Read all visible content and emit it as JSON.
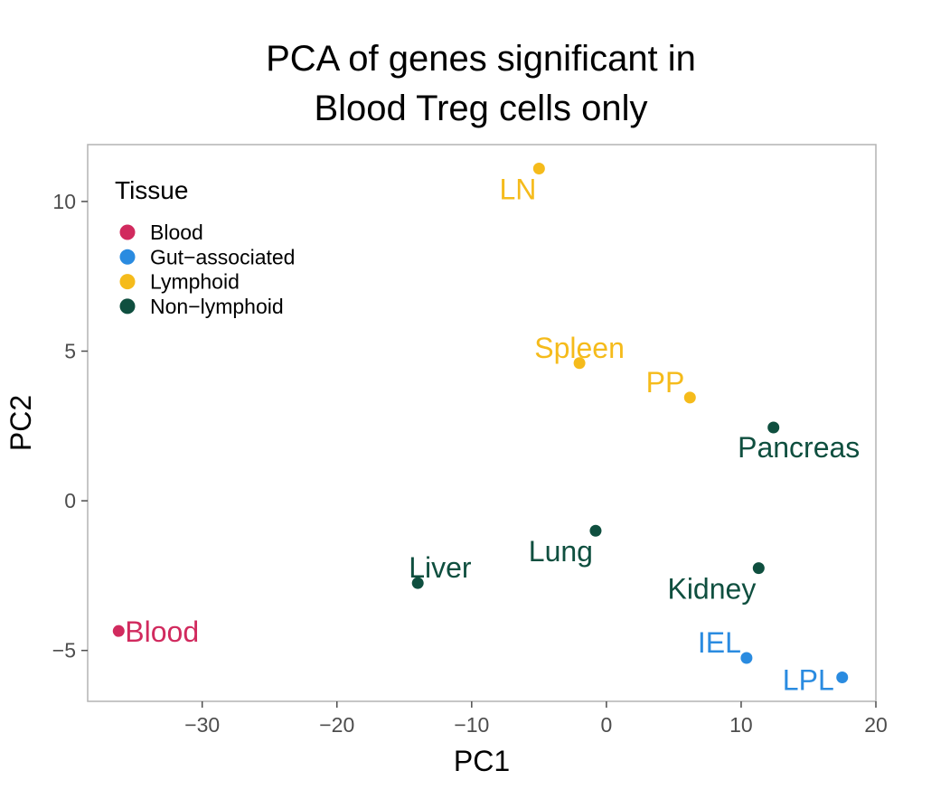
{
  "chart_data": {
    "type": "scatter",
    "title": [
      "PCA of genes significant in",
      "Blood Treg cells only"
    ],
    "xlabel": "PC1",
    "ylabel": "PC2",
    "xlim": [
      -38.5,
      20
    ],
    "ylim": [
      -6.7,
      11.9
    ],
    "xticks": [
      -30,
      -20,
      -10,
      0,
      10,
      20
    ],
    "xtick_labels": [
      "−30",
      "−20",
      "−10",
      "0",
      "10",
      "20"
    ],
    "yticks": [
      -5,
      0,
      5,
      10
    ],
    "ytick_labels": [
      "−5",
      "0",
      "5",
      "10"
    ],
    "grid": false,
    "legend": {
      "title": "Tissue",
      "placement": "top-left",
      "entries": [
        {
          "label": "Blood",
          "color": "#d12a5e"
        },
        {
          "label": "Gut−associated",
          "color": "#2a8be0"
        },
        {
          "label": "Lymphoid",
          "color": "#f5bb1b"
        },
        {
          "label": "Non−lymphoid",
          "color": "#0f4f3f"
        }
      ]
    },
    "points": [
      {
        "label": "LN",
        "tissue": "Lymphoid",
        "x": -5.0,
        "y": 11.1,
        "label_pos": "below-left"
      },
      {
        "label": "Spleen",
        "tissue": "Lymphoid",
        "x": -2.0,
        "y": 4.6,
        "label_pos": "above"
      },
      {
        "label": "PP",
        "tissue": "Lymphoid",
        "x": 6.2,
        "y": 3.45,
        "label_pos": "above-left"
      },
      {
        "label": "Pancreas",
        "tissue": "Non−lymphoid",
        "x": 12.4,
        "y": 2.45,
        "label_pos": "below"
      },
      {
        "label": "Lung",
        "tissue": "Non−lymphoid",
        "x": -0.8,
        "y": -1.0,
        "label_pos": "below-left"
      },
      {
        "label": "Liver",
        "tissue": "Non−lymphoid",
        "x": -14.0,
        "y": -2.75,
        "label_pos": "above-right"
      },
      {
        "label": "Kidney",
        "tissue": "Non−lymphoid",
        "x": 11.3,
        "y": -2.25,
        "label_pos": "below-left"
      },
      {
        "label": "Blood",
        "tissue": "Blood",
        "x": -36.2,
        "y": -4.35,
        "label_pos": "right"
      },
      {
        "label": "IEL",
        "tissue": "Gut−associated",
        "x": 10.4,
        "y": -5.25,
        "label_pos": "above-left"
      },
      {
        "label": "LPL",
        "tissue": "Gut−associated",
        "x": 17.5,
        "y": -5.9,
        "label_pos": "left"
      }
    ]
  }
}
